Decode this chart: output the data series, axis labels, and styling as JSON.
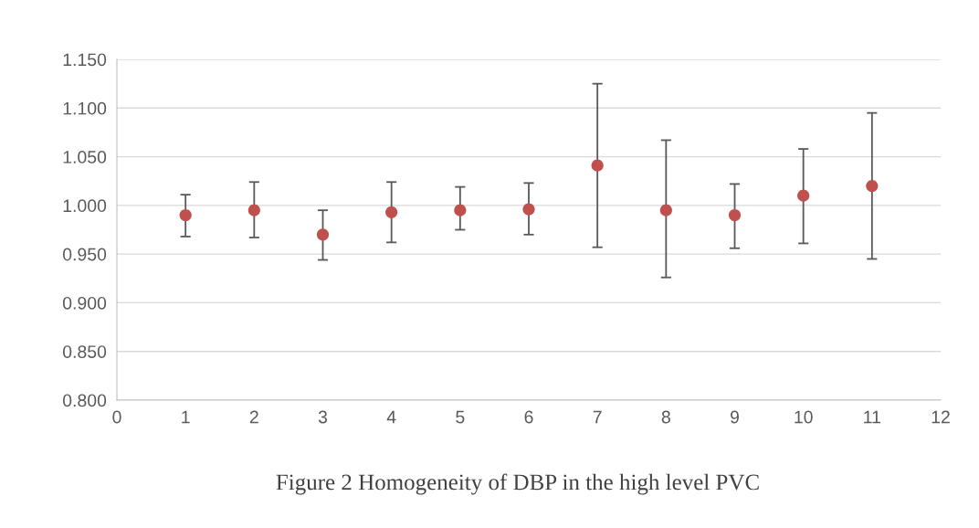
{
  "chart_data": {
    "type": "scatter",
    "title": "Figure 2 Homogeneity of DBP in the high level PVC",
    "x": [
      1,
      2,
      3,
      4,
      5,
      6,
      7,
      8,
      9,
      10,
      11
    ],
    "series": [
      {
        "color": "#c0504d",
        "values": [
          0.99,
          0.995,
          0.97,
          0.993,
          0.995,
          0.996,
          1.041,
          0.995,
          0.99,
          1.01,
          1.02
        ],
        "errors": [
          [
            0.968,
            1.011
          ],
          [
            0.967,
            1.024
          ],
          [
            0.944,
            0.995
          ],
          [
            0.962,
            1.024
          ],
          [
            0.975,
            1.019
          ],
          [
            0.97,
            1.023
          ],
          [
            0.957,
            1.125
          ],
          [
            0.926,
            1.067
          ],
          [
            0.956,
            1.022
          ],
          [
            0.961,
            1.058
          ],
          [
            0.945,
            1.095
          ]
        ]
      }
    ],
    "xlim": [
      0,
      12
    ],
    "xticks": [
      0,
      1,
      2,
      3,
      4,
      5,
      6,
      7,
      8,
      9,
      10,
      11,
      12
    ],
    "ylim": [
      0.8,
      1.15
    ],
    "yticks": [
      {
        "value": 0.8,
        "label": "0.800"
      },
      {
        "value": 0.85,
        "label": "0.850"
      },
      {
        "value": 0.9,
        "label": "0.900"
      },
      {
        "value": 0.95,
        "label": "0.950"
      },
      {
        "value": 1.0,
        "label": "1.000"
      },
      {
        "value": 1.05,
        "label": "1.050"
      },
      {
        "value": 1.1,
        "label": "1.100"
      },
      {
        "value": 1.15,
        "label": "1.150"
      }
    ],
    "grid": "y",
    "marker": "circle"
  }
}
